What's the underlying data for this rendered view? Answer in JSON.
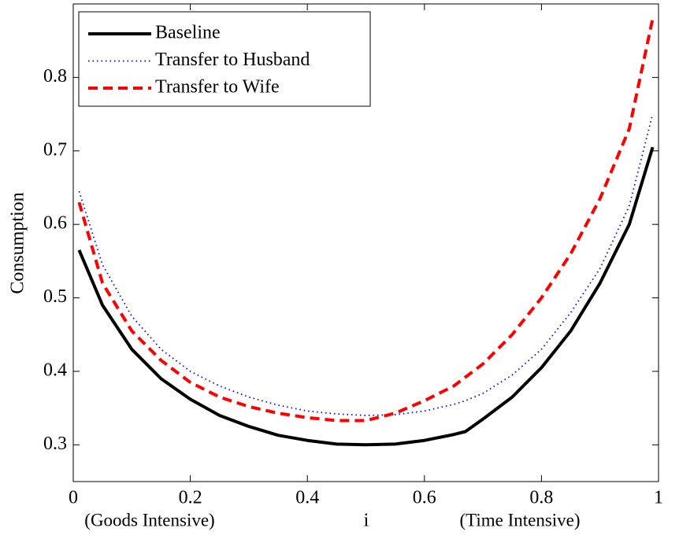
{
  "chart_data": {
    "type": "line",
    "x": [
      0.01,
      0.05,
      0.1,
      0.15,
      0.2,
      0.25,
      0.3,
      0.35,
      0.4,
      0.45,
      0.5,
      0.55,
      0.6,
      0.65,
      0.67,
      0.7,
      0.75,
      0.8,
      0.85,
      0.9,
      0.95,
      0.99
    ],
    "series": [
      {
        "name": "Baseline",
        "color": "#000000",
        "style": "solid",
        "values": [
          0.565,
          0.49,
          0.43,
          0.39,
          0.362,
          0.34,
          0.325,
          0.313,
          0.306,
          0.301,
          0.3,
          0.301,
          0.306,
          0.314,
          0.318,
          0.335,
          0.365,
          0.405,
          0.455,
          0.52,
          0.6,
          0.705
        ]
      },
      {
        "name": "Transfer to Husband",
        "color": "#0000ff",
        "style": "dotted",
        "values": [
          0.645,
          0.545,
          0.475,
          0.43,
          0.4,
          0.38,
          0.365,
          0.354,
          0.346,
          0.342,
          0.34,
          0.341,
          0.346,
          0.355,
          0.36,
          0.37,
          0.395,
          0.43,
          0.48,
          0.54,
          0.625,
          0.75
        ]
      },
      {
        "name": "Transfer to Wife",
        "color": "#ff0000",
        "style": "dashed",
        "values": [
          0.63,
          0.52,
          0.455,
          0.415,
          0.385,
          0.365,
          0.352,
          0.343,
          0.337,
          0.333,
          0.333,
          0.343,
          0.36,
          0.38,
          0.392,
          0.41,
          0.45,
          0.5,
          0.56,
          0.635,
          0.73,
          0.88
        ]
      }
    ],
    "x_label": "i",
    "y_label": "Consumption",
    "annotations": [
      "(Goods Intensive)",
      "(Time Intensive)"
    ],
    "xlim": [
      0,
      1
    ],
    "xticks": [
      0,
      0.2,
      0.4,
      0.6,
      0.8,
      1
    ],
    "ylim": [
      0.25,
      0.9
    ],
    "yticks": [
      0.3,
      0.4,
      0.5,
      0.6,
      0.7,
      0.8
    ],
    "legend": "upper left"
  }
}
